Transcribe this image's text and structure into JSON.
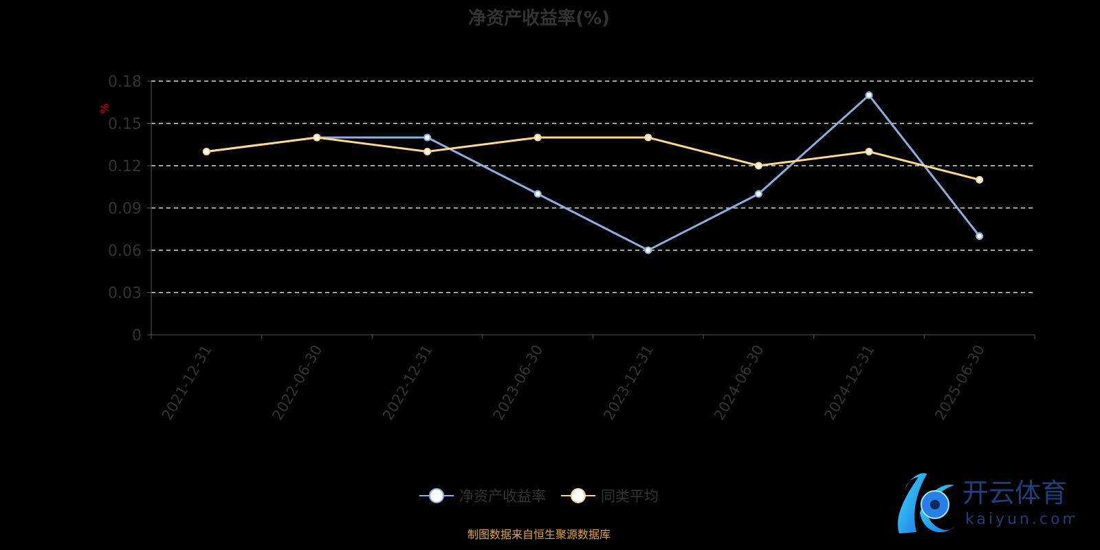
{
  "chart_data": {
    "type": "line",
    "title": "净资产收益率(%)",
    "ylabel": "%",
    "ylim": [
      0,
      0.18
    ],
    "yticks": [
      "0",
      "0.03",
      "0.06",
      "0.09",
      "0.12",
      "0.15",
      "0.18"
    ],
    "grid": true,
    "legend_position": "bottom",
    "categories": [
      "2021-12-31",
      "2022-06-30",
      "2022-12-31",
      "2023-06-30",
      "2023-12-31",
      "2024-06-30",
      "2024-12-31",
      "2025-06-30"
    ],
    "series": [
      {
        "name": "净资产收益率",
        "color": "#8eaee0",
        "values": [
          0.13,
          0.14,
          0.14,
          0.1,
          0.06,
          0.1,
          0.17,
          0.07
        ]
      },
      {
        "name": "同类平均",
        "color": "#fcd88e",
        "values": [
          0.13,
          0.14,
          0.13,
          0.14,
          0.14,
          0.12,
          0.13,
          0.11
        ]
      }
    ]
  },
  "source": "制图数据来自恒生聚源数据库",
  "logo": {
    "text_cn": "开云体育",
    "text_en": "Kaiyun.com"
  }
}
